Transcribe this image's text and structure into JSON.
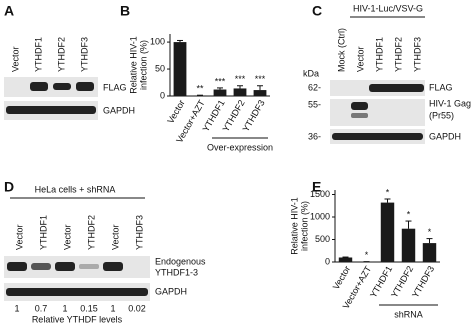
{
  "panels": {
    "A": {
      "label": "A",
      "lanes": [
        "Vector",
        "YTHDF1",
        "YTHDF2",
        "YTHDF3"
      ],
      "bands": [
        "FLAG",
        "GAPDH"
      ]
    },
    "C": {
      "label": "C",
      "header": "HIV-1-Luc/VSV-G",
      "lanes": [
        "Mock (Ctrl)",
        "Vector",
        "YTHDF1",
        "YTHDF2",
        "YTHDF3"
      ],
      "marker_unit": "kDa",
      "markers": [
        "62-",
        "55-",
        "36-"
      ],
      "bands": [
        [
          "FLAG"
        ],
        [
          "HIV-1 Gag",
          "(Pr55)"
        ],
        [
          "GAPDH"
        ]
      ]
    },
    "D": {
      "label": "D",
      "header": "HeLa cells + shRNA",
      "lanes": [
        "Vector",
        "YTHDF1",
        "Vector",
        "YTHDF2",
        "Vector",
        "YTHDF3"
      ],
      "bands": [
        [
          "Endogenous",
          "YTHDF1-3"
        ],
        [
          "GAPDH"
        ]
      ],
      "levels": [
        1,
        0.7,
        1,
        0.15,
        1,
        0.02
      ],
      "levels_label": "Relative YTHDF levels"
    }
  },
  "chart_data": [
    {
      "label": "B",
      "type": "bar",
      "ylabel": [
        "Relative HIV-1",
        "infection (%)"
      ],
      "categories": [
        "Vector",
        "Vector+AZT",
        "YTHDF1",
        "YTHDF2",
        "YTHDF3"
      ],
      "values": [
        100,
        1,
        12,
        14,
        11
      ],
      "errors": [
        3,
        0.5,
        3,
        5,
        8
      ],
      "annotations": [
        null,
        "**",
        "***",
        "***",
        "***"
      ],
      "group_label": "Over-expression",
      "color": "#1a1a1a",
      "ylim": [
        0,
        115
      ],
      "yticks": [
        0,
        50,
        100
      ]
    },
    {
      "label": "E",
      "type": "bar",
      "ylabel": [
        "Relative HIV-1",
        "infection (%)"
      ],
      "categories": [
        "Vector",
        "Vector+AZT",
        "YTHDF1",
        "YTHDF2",
        "YTHDF3"
      ],
      "values": [
        100,
        5,
        1320,
        740,
        420
      ],
      "errors": [
        10,
        3,
        80,
        170,
        100
      ],
      "annotations": [
        null,
        "*",
        "*",
        "*",
        "*"
      ],
      "group_label": "shRNA",
      "color": "#1a1a1a",
      "ylim": [
        0,
        1600
      ],
      "yticks": [
        0,
        500,
        1000,
        1500
      ]
    }
  ]
}
